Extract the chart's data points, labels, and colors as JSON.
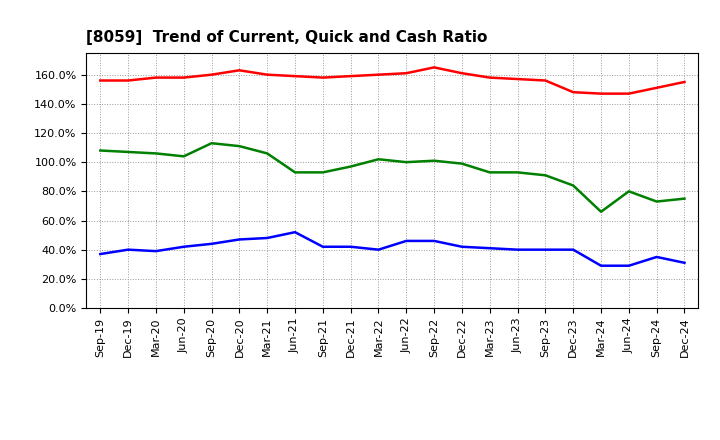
{
  "title": "[8059]  Trend of Current, Quick and Cash Ratio",
  "x_labels": [
    "Sep-19",
    "Dec-19",
    "Mar-20",
    "Jun-20",
    "Sep-20",
    "Dec-20",
    "Mar-21",
    "Jun-21",
    "Sep-21",
    "Dec-21",
    "Mar-22",
    "Jun-22",
    "Sep-22",
    "Dec-22",
    "Mar-23",
    "Jun-23",
    "Sep-23",
    "Dec-23",
    "Mar-24",
    "Jun-24",
    "Sep-24",
    "Dec-24"
  ],
  "current_ratio": [
    156,
    156,
    158,
    158,
    160,
    163,
    160,
    159,
    158,
    159,
    160,
    161,
    165,
    161,
    158,
    157,
    156,
    148,
    147,
    147,
    151,
    155
  ],
  "quick_ratio": [
    108,
    107,
    106,
    104,
    113,
    111,
    106,
    93,
    93,
    97,
    102,
    100,
    101,
    99,
    93,
    93,
    91,
    84,
    66,
    80,
    73,
    75
  ],
  "cash_ratio": [
    37,
    40,
    39,
    42,
    44,
    47,
    48,
    52,
    42,
    42,
    40,
    46,
    46,
    42,
    41,
    40,
    40,
    40,
    29,
    29,
    35,
    31
  ],
  "current_color": "#FF0000",
  "quick_color": "#008000",
  "cash_color": "#0000FF",
  "ylim": [
    0,
    175
  ],
  "yticks": [
    0,
    20,
    40,
    60,
    80,
    100,
    120,
    140,
    160
  ],
  "background_color": "#FFFFFF",
  "grid_color": "#999999",
  "title_fontsize": 11,
  "tick_fontsize": 8,
  "legend_fontsize": 9,
  "line_width": 1.8
}
